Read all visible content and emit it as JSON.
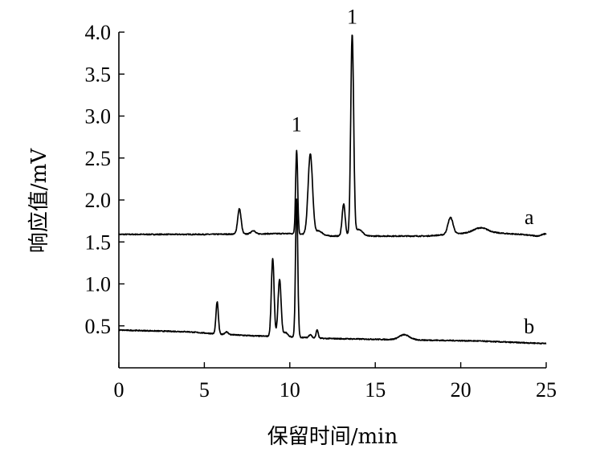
{
  "chart_data": {
    "type": "line",
    "title": "",
    "xlabel": "保留时间/min",
    "ylabel": "响应值/mV",
    "xlim": [
      0,
      25
    ],
    "ylim": [
      0,
      4.0
    ],
    "xticks": [
      0,
      5,
      10,
      15,
      20,
      25
    ],
    "xtick_labels": [
      "0",
      "5",
      "10",
      "15",
      "20",
      "25"
    ],
    "yticks": [
      0.5,
      1.0,
      1.5,
      2.0,
      2.5,
      3.0,
      3.5,
      4.0
    ],
    "ytick_labels": [
      "0.5",
      "1.0",
      "1.5",
      "2.0",
      "2.5",
      "3.0",
      "3.5",
      "4.0"
    ],
    "grid": false,
    "series": [
      {
        "name": "a",
        "baseline": [
          [
            0,
            1.59
          ],
          [
            5,
            1.59
          ],
          [
            10,
            1.6
          ],
          [
            12.5,
            1.57
          ],
          [
            14.5,
            1.57
          ],
          [
            18,
            1.57
          ],
          [
            20,
            1.6
          ],
          [
            21,
            1.62
          ],
          [
            23.5,
            1.59
          ],
          [
            24.5,
            1.57
          ],
          [
            25,
            1.6
          ]
        ],
        "peaks": [
          {
            "x": 7.05,
            "height": 0.3,
            "width": 0.1
          },
          {
            "x": 7.85,
            "height": 0.04,
            "width": 0.12
          },
          {
            "x": 10.4,
            "height": 1.0,
            "width": 0.06
          },
          {
            "x": 11.2,
            "height": 0.96,
            "width": 0.13
          },
          {
            "x": 11.7,
            "height": 0.05,
            "width": 0.2
          },
          {
            "x": 13.15,
            "height": 0.38,
            "width": 0.09
          },
          {
            "x": 13.65,
            "height": 2.4,
            "width": 0.085
          },
          {
            "x": 14.05,
            "height": 0.08,
            "width": 0.2
          },
          {
            "x": 19.4,
            "height": 0.2,
            "width": 0.15
          },
          {
            "x": 21.2,
            "height": 0.05,
            "width": 0.4
          }
        ],
        "label_at": [
          24.0,
          1.8
        ]
      },
      {
        "name": "b",
        "baseline": [
          [
            0,
            0.45
          ],
          [
            4,
            0.43
          ],
          [
            6,
            0.4
          ],
          [
            8,
            0.38
          ],
          [
            10,
            0.37
          ],
          [
            12,
            0.35
          ],
          [
            15,
            0.34
          ],
          [
            18,
            0.33
          ],
          [
            21,
            0.32
          ],
          [
            23.5,
            0.3
          ],
          [
            25,
            0.29
          ]
        ],
        "peaks": [
          {
            "x": 5.75,
            "height": 0.38,
            "width": 0.07
          },
          {
            "x": 6.3,
            "height": 0.03,
            "width": 0.1
          },
          {
            "x": 9.0,
            "height": 0.93,
            "width": 0.08
          },
          {
            "x": 9.4,
            "height": 0.68,
            "width": 0.09
          },
          {
            "x": 9.75,
            "height": 0.05,
            "width": 0.12
          },
          {
            "x": 10.4,
            "height": 1.64,
            "width": 0.065
          },
          {
            "x": 11.2,
            "height": 0.04,
            "width": 0.08
          },
          {
            "x": 11.6,
            "height": 0.1,
            "width": 0.06
          },
          {
            "x": 16.7,
            "height": 0.06,
            "width": 0.3
          }
        ],
        "label_at": [
          24.0,
          0.5
        ]
      }
    ],
    "annotations": [
      {
        "text": "1",
        "x": 10.4,
        "y": 2.82
      },
      {
        "text": "1",
        "x": 13.65,
        "y": 4.1
      }
    ]
  }
}
